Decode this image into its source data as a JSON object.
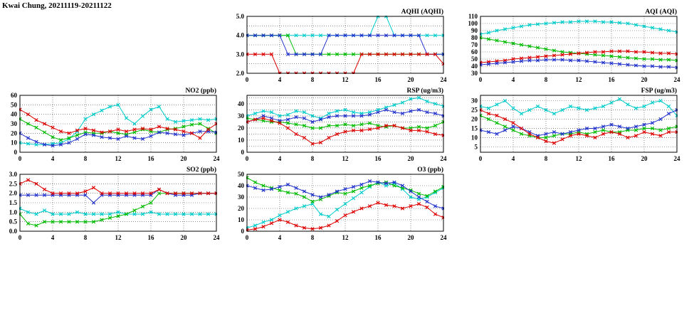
{
  "page_title": "Kwai Chung, 20211119-20211122",
  "colors": {
    "red": "#dd0000",
    "green": "#00bb00",
    "blue": "#2233cc",
    "cyan": "#00cccc"
  },
  "x_axis": {
    "min": 0,
    "max": 24,
    "ticks": [
      0,
      4,
      8,
      12,
      16,
      20,
      24
    ]
  },
  "chart_data": [
    {
      "id": "aqhi",
      "type": "line",
      "title": "AQHI (AQHI)",
      "ylim": [
        2,
        5
      ],
      "yticks": [
        2,
        3,
        4,
        5
      ],
      "ytick_labels": [
        "2.0",
        "3.0",
        "4.0",
        "5.0"
      ],
      "yminor": [
        2.5,
        3.5,
        4.5
      ],
      "series": [
        {
          "name": "cyan",
          "color": "cyan",
          "values": [
            4,
            4,
            4,
            4,
            4,
            4,
            4,
            4,
            4,
            4,
            4,
            4,
            4,
            4,
            4,
            4,
            5,
            5,
            4,
            4,
            4,
            4,
            4,
            4,
            4
          ]
        },
        {
          "name": "green",
          "color": "green",
          "values": [
            4,
            4,
            4,
            4,
            4,
            4,
            3,
            3,
            3,
            3,
            3,
            3,
            3,
            3,
            3,
            3,
            3,
            3,
            3,
            3,
            3,
            3,
            3,
            3,
            3
          ]
        },
        {
          "name": "blue",
          "color": "blue",
          "values": [
            4,
            4,
            4,
            4,
            4,
            3,
            3,
            3,
            3,
            3,
            4,
            4,
            4,
            4,
            4,
            4,
            4,
            4,
            4,
            4,
            4,
            4,
            3,
            3,
            3
          ]
        },
        {
          "name": "red",
          "color": "red",
          "values": [
            3,
            3,
            3,
            3,
            2,
            2,
            2,
            2,
            2,
            2,
            2,
            2,
            2,
            2,
            3,
            3,
            3,
            3,
            3,
            3,
            3,
            3,
            3,
            3,
            2.5
          ]
        }
      ]
    },
    {
      "id": "aqi",
      "type": "line",
      "title": "AQI (AQI)",
      "ylim": [
        30,
        110
      ],
      "yticks": [
        30,
        40,
        50,
        60,
        70,
        80,
        90,
        100,
        110
      ],
      "ytick_labels": [
        "30",
        "40",
        "50",
        "60",
        "70",
        "80",
        "90",
        "100",
        "110"
      ],
      "yminor": [],
      "series": [
        {
          "name": "cyan",
          "color": "cyan",
          "values": [
            85,
            87,
            90,
            92,
            94,
            96,
            98,
            99,
            100,
            101,
            102,
            102,
            103,
            103,
            103,
            102,
            102,
            101,
            100,
            98,
            96,
            94,
            92,
            90,
            88
          ]
        },
        {
          "name": "green",
          "color": "green",
          "values": [
            80,
            78,
            76,
            74,
            72,
            70,
            68,
            66,
            64,
            62,
            60,
            59,
            58,
            57,
            56,
            55,
            54,
            53,
            52,
            51,
            50,
            50,
            49,
            49,
            48
          ]
        },
        {
          "name": "red",
          "color": "red",
          "values": [
            45,
            46,
            47,
            48,
            50,
            51,
            52,
            53,
            54,
            55,
            56,
            57,
            58,
            59,
            60,
            60,
            61,
            61,
            61,
            60,
            60,
            59,
            58,
            58,
            57
          ]
        },
        {
          "name": "blue",
          "color": "blue",
          "values": [
            42,
            43,
            44,
            45,
            46,
            47,
            48,
            48,
            49,
            49,
            49,
            48,
            48,
            47,
            46,
            45,
            44,
            43,
            42,
            41,
            40,
            40,
            39,
            39,
            38
          ]
        }
      ]
    },
    {
      "id": "no2",
      "type": "line",
      "title": "NO2 (ppb)",
      "ylim": [
        0,
        60
      ],
      "yticks": [
        0,
        10,
        20,
        30,
        40,
        50,
        60
      ],
      "ytick_labels": [
        "0",
        "10",
        "20",
        "30",
        "40",
        "50",
        "60"
      ],
      "yminor": [],
      "series": [
        {
          "name": "cyan",
          "color": "cyan",
          "values": [
            10,
            9,
            8,
            8,
            9,
            10,
            14,
            22,
            35,
            40,
            44,
            48,
            50,
            36,
            30,
            38,
            45,
            48,
            35,
            32,
            33,
            34,
            35,
            34,
            35
          ]
        },
        {
          "name": "green",
          "color": "green",
          "values": [
            35,
            30,
            26,
            21,
            16,
            13,
            15,
            18,
            21,
            20,
            20,
            22,
            20,
            19,
            21,
            24,
            22,
            21,
            24,
            25,
            27,
            29,
            30,
            25,
            20
          ]
        },
        {
          "name": "blue",
          "color": "blue",
          "values": [
            20,
            15,
            11,
            8,
            7,
            8,
            10,
            14,
            19,
            18,
            16,
            15,
            14,
            17,
            15,
            14,
            17,
            21,
            20,
            19,
            18,
            20,
            22,
            22,
            21
          ]
        },
        {
          "name": "red",
          "color": "red",
          "values": [
            45,
            40,
            34,
            30,
            26,
            22,
            20,
            23,
            25,
            23,
            21,
            22,
            24,
            22,
            24,
            25,
            24,
            27,
            25,
            24,
            22,
            20,
            15,
            24,
            30
          ]
        }
      ]
    },
    {
      "id": "rsp",
      "type": "line",
      "title": "RSP (ug/m3)",
      "ylim": [
        0,
        47
      ],
      "yticks": [
        0,
        10,
        20,
        30,
        40
      ],
      "ytick_labels": [
        "0",
        "10",
        "20",
        "30",
        "40"
      ],
      "yminor": [
        5,
        15,
        25,
        35,
        45
      ],
      "series": [
        {
          "name": "cyan",
          "color": "cyan",
          "values": [
            30,
            32,
            34,
            33,
            30,
            31,
            34,
            33,
            30,
            28,
            32,
            34,
            35,
            33,
            32,
            33,
            35,
            37,
            39,
            41,
            44,
            45,
            42,
            40,
            38
          ]
        },
        {
          "name": "green",
          "color": "green",
          "values": [
            28,
            27,
            26,
            25,
            25,
            24,
            23,
            22,
            20,
            20,
            22,
            22,
            23,
            22,
            23,
            24,
            22,
            21,
            22,
            20,
            20,
            21,
            20,
            22,
            25
          ]
        },
        {
          "name": "blue",
          "color": "blue",
          "values": [
            25,
            27,
            30,
            28,
            26,
            27,
            29,
            28,
            25,
            27,
            29,
            30,
            30,
            30,
            30,
            31,
            33,
            35,
            33,
            32,
            34,
            35,
            33,
            32,
            30
          ]
        },
        {
          "name": "red",
          "color": "red",
          "values": [
            25,
            27,
            28,
            26,
            24,
            20,
            15,
            12,
            7,
            8,
            12,
            15,
            17,
            18,
            18,
            19,
            20,
            22,
            22,
            20,
            18,
            18,
            17,
            15,
            14
          ]
        }
      ]
    },
    {
      "id": "fsp",
      "type": "line",
      "title": "FSP (ug/m3)",
      "ylim": [
        2,
        33
      ],
      "yticks": [
        5,
        10,
        15,
        20,
        25,
        30
      ],
      "ytick_labels": [
        "5",
        "10",
        "15",
        "20",
        "25",
        "30"
      ],
      "yminor": [],
      "series": [
        {
          "name": "cyan",
          "color": "cyan",
          "values": [
            27,
            26,
            28,
            30,
            26,
            23,
            25,
            27,
            25,
            23,
            25,
            27,
            26,
            25,
            26,
            27,
            29,
            31,
            28,
            26,
            27,
            29,
            30,
            27,
            22
          ]
        },
        {
          "name": "green",
          "color": "green",
          "values": [
            22,
            20,
            18,
            16,
            14,
            12,
            11,
            10,
            10,
            11,
            12,
            12,
            13,
            12,
            13,
            14,
            13,
            13,
            14,
            14,
            15,
            15,
            14,
            15,
            16
          ]
        },
        {
          "name": "blue",
          "color": "blue",
          "values": [
            14,
            13,
            12,
            14,
            16,
            15,
            13,
            11,
            12,
            13,
            12,
            13,
            14,
            15,
            15,
            16,
            17,
            16,
            15,
            16,
            17,
            18,
            20,
            23,
            25
          ]
        },
        {
          "name": "red",
          "color": "red",
          "values": [
            25,
            23,
            22,
            20,
            18,
            15,
            12,
            10,
            8,
            7,
            9,
            11,
            12,
            11,
            10,
            12,
            13,
            12,
            10,
            11,
            13,
            12,
            11,
            13,
            13
          ]
        }
      ]
    },
    {
      "id": "so2",
      "type": "line",
      "title": "SO2 (ppb)",
      "ylim": [
        0,
        3
      ],
      "yticks": [
        0,
        0.5,
        1,
        1.5,
        2,
        2.5,
        3
      ],
      "ytick_labels": [
        "0.0",
        "0.5",
        "1.0",
        "1.5",
        "2.0",
        "2.5",
        "3.0"
      ],
      "yminor": [],
      "series": [
        {
          "name": "cyan",
          "color": "cyan",
          "values": [
            1.2,
            1.0,
            0.9,
            1.1,
            0.9,
            0.9,
            0.9,
            1.0,
            0.9,
            0.9,
            0.9,
            0.9,
            1.0,
            0.9,
            0.9,
            0.9,
            1.0,
            0.9,
            0.9,
            0.9,
            0.9,
            0.9,
            0.9,
            0.9,
            0.9
          ]
        },
        {
          "name": "green",
          "color": "green",
          "values": [
            0.9,
            0.4,
            0.3,
            0.5,
            0.5,
            0.5,
            0.5,
            0.5,
            0.5,
            0.5,
            0.6,
            0.7,
            0.8,
            0.9,
            1.1,
            1.3,
            1.5,
            2.0,
            2.0,
            2.0,
            2.0,
            2.0,
            2.0,
            2.0,
            2.0
          ]
        },
        {
          "name": "blue",
          "color": "blue",
          "values": [
            1.9,
            1.9,
            1.9,
            1.9,
            1.9,
            1.9,
            1.9,
            1.9,
            1.9,
            1.5,
            1.9,
            1.9,
            1.9,
            1.9,
            1.9,
            1.9,
            1.9,
            2.2,
            2.0,
            1.9,
            1.9,
            1.9,
            2.0,
            2.0,
            2.0
          ]
        },
        {
          "name": "red",
          "color": "red",
          "values": [
            2.5,
            2.7,
            2.5,
            2.2,
            2.0,
            2.0,
            2.0,
            2.0,
            2.1,
            2.3,
            2.0,
            2.0,
            2.0,
            2.0,
            2.0,
            2.0,
            2.0,
            2.2,
            2.0,
            2.0,
            2.0,
            2.0,
            2.0,
            2.0,
            2.0
          ]
        }
      ]
    },
    {
      "id": "o3",
      "type": "line",
      "title": "O3 (ppb)",
      "ylim": [
        0,
        50
      ],
      "yticks": [
        0,
        10,
        20,
        30,
        40,
        50
      ],
      "ytick_labels": [
        "0",
        "10",
        "20",
        "30",
        "40",
        "50"
      ],
      "yminor": [],
      "series": [
        {
          "name": "cyan",
          "color": "cyan",
          "values": [
            3,
            5,
            8,
            10,
            14,
            17,
            20,
            22,
            24,
            15,
            13,
            19,
            24,
            29,
            34,
            39,
            43,
            40,
            42,
            37,
            30,
            28,
            30,
            34,
            38
          ]
        },
        {
          "name": "green",
          "color": "green",
          "values": [
            47,
            43,
            40,
            38,
            36,
            34,
            33,
            30,
            26,
            28,
            31,
            34,
            33,
            35,
            38,
            40,
            42,
            43,
            40,
            38,
            36,
            33,
            31,
            35,
            39
          ]
        },
        {
          "name": "blue",
          "color": "blue",
          "values": [
            40,
            38,
            36,
            37,
            39,
            41,
            38,
            35,
            32,
            30,
            32,
            35,
            37,
            39,
            41,
            44,
            43,
            42,
            43,
            40,
            35,
            30,
            26,
            22,
            20
          ]
        },
        {
          "name": "red",
          "color": "red",
          "values": [
            1,
            2,
            4,
            7,
            10,
            8,
            5,
            3,
            2,
            3,
            5,
            9,
            14,
            17,
            20,
            22,
            25,
            23,
            22,
            20,
            22,
            24,
            21,
            15,
            12
          ]
        }
      ]
    }
  ]
}
